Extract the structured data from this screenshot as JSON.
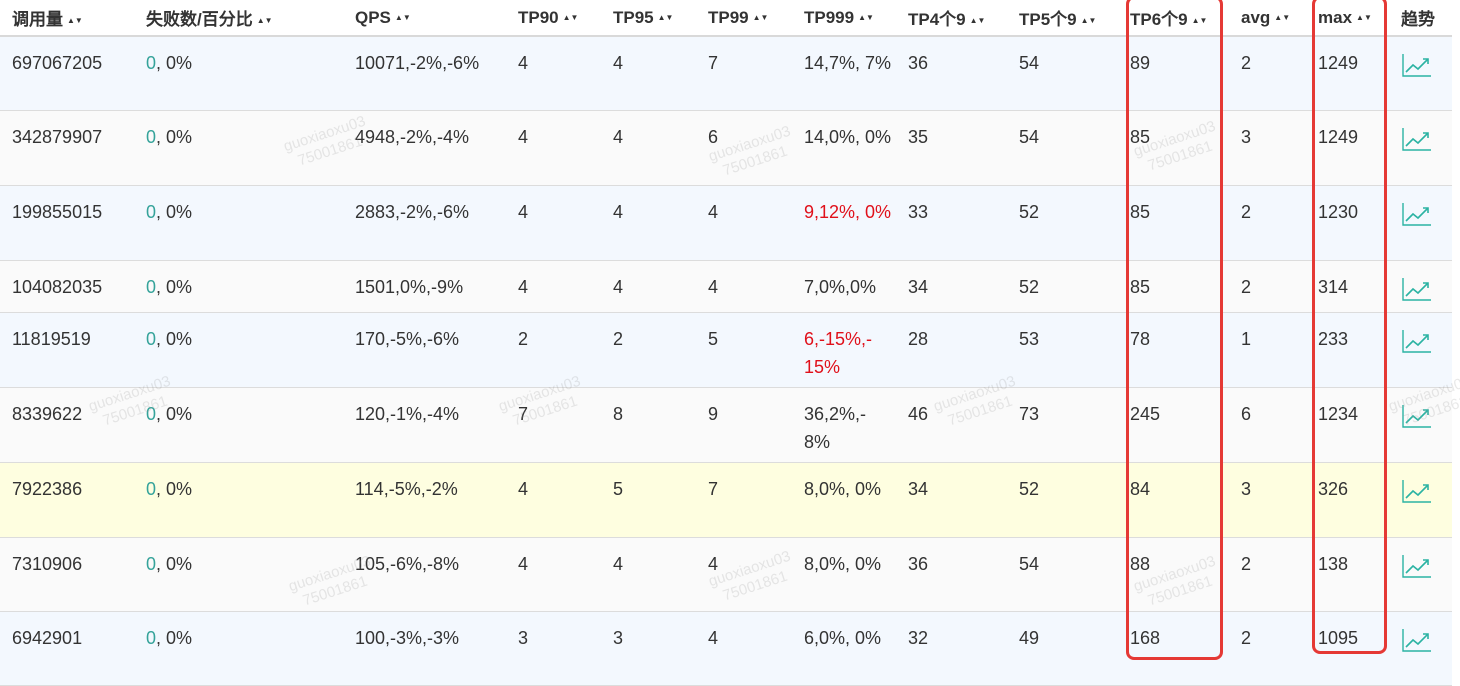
{
  "columns": [
    {
      "key": "calls",
      "label": "调用量"
    },
    {
      "key": "fail",
      "label": "失败数/百分比"
    },
    {
      "key": "qps",
      "label": "QPS"
    },
    {
      "key": "tp90",
      "label": "TP90"
    },
    {
      "key": "tp95",
      "label": "TP95"
    },
    {
      "key": "tp99",
      "label": "TP99"
    },
    {
      "key": "tp999",
      "label": "TP999"
    },
    {
      "key": "tp4",
      "label": "TP4个9"
    },
    {
      "key": "tp5",
      "label": "TP5个9"
    },
    {
      "key": "tp6",
      "label": "TP6个9"
    },
    {
      "key": "avg",
      "label": "avg"
    },
    {
      "key": "max",
      "label": "max"
    },
    {
      "key": "trend",
      "label": "趋势"
    }
  ],
  "rows": [
    {
      "calls": "697067205",
      "fail_count": "0",
      "fail_pct": ", 0%",
      "qps": "10071,-2%,-6%",
      "tp90": "4",
      "tp95": "4",
      "tp99": "7",
      "tp999": "14,7%, 7%",
      "tp999_alert": false,
      "tp4": "36",
      "tp5": "54",
      "tp6": "89",
      "avg": "2",
      "max": "1249"
    },
    {
      "calls": "342879907",
      "fail_count": "0",
      "fail_pct": ", 0%",
      "qps": "4948,-2%,-4%",
      "tp90": "4",
      "tp95": "4",
      "tp99": "6",
      "tp999": "14,0%, 0%",
      "tp999_alert": false,
      "tp4": "35",
      "tp5": "54",
      "tp6": "85",
      "avg": "3",
      "max": "1249"
    },
    {
      "calls": "199855015",
      "fail_count": "0",
      "fail_pct": ", 0%",
      "qps": "2883,-2%,-6%",
      "tp90": "4",
      "tp95": "4",
      "tp99": "4",
      "tp999": "9,12%, 0%",
      "tp999_alert": true,
      "tp4": "33",
      "tp5": "52",
      "tp6": "85",
      "avg": "2",
      "max": "1230"
    },
    {
      "calls": "104082035",
      "fail_count": "0",
      "fail_pct": ", 0%",
      "qps": "1501,0%,-9%",
      "tp90": "4",
      "tp95": "4",
      "tp99": "4",
      "tp999": "7,0%,0%",
      "tp999_alert": false,
      "tp4": "34",
      "tp5": "52",
      "tp6": "85",
      "avg": "2",
      "max": "314"
    },
    {
      "calls": "11819519",
      "fail_count": "0",
      "fail_pct": ", 0%",
      "qps": "170,-5%,-6%",
      "tp90": "2",
      "tp95": "2",
      "tp99": "5",
      "tp999": "6,-15%,- 15%",
      "tp999_alert": true,
      "tp4": "28",
      "tp5": "53",
      "tp6": "78",
      "avg": "1",
      "max": "233"
    },
    {
      "calls": "8339622",
      "fail_count": "0",
      "fail_pct": ", 0%",
      "qps": "120,-1%,-4%",
      "tp90": "7",
      "tp95": "8",
      "tp99": "9",
      "tp999": "36,2%,- 8%",
      "tp999_alert": false,
      "tp4": "46",
      "tp5": "73",
      "tp6": "245",
      "avg": "6",
      "max": "1234"
    },
    {
      "calls": "7922386",
      "fail_count": "0",
      "fail_pct": ", 0%",
      "qps": "114,-5%,-2%",
      "tp90": "4",
      "tp95": "5",
      "tp99": "7",
      "tp999": "8,0%, 0%",
      "tp999_alert": false,
      "tp4": "34",
      "tp5": "52",
      "tp6": "84",
      "avg": "3",
      "max": "326",
      "highlight": true
    },
    {
      "calls": "7310906",
      "fail_count": "0",
      "fail_pct": ", 0%",
      "qps": "105,-6%,-8%",
      "tp90": "4",
      "tp95": "4",
      "tp99": "4",
      "tp999": "8,0%, 0%",
      "tp999_alert": false,
      "tp4": "36",
      "tp5": "54",
      "tp6": "88",
      "avg": "2",
      "max": "138"
    },
    {
      "calls": "6942901",
      "fail_count": "0",
      "fail_pct": ", 0%",
      "qps": "100,-3%,-3%",
      "tp90": "3",
      "tp95": "3",
      "tp99": "4",
      "tp999": "6,0%, 0%",
      "tp999_alert": false,
      "tp4": "32",
      "tp5": "49",
      "tp6": "168",
      "avg": "2",
      "max": "1095"
    }
  ],
  "watermark": {
    "user": "guoxiaoxu03",
    "id": "75001861"
  },
  "colors": {
    "fail_count": "#35a39a",
    "alert_text": "#e0101a",
    "highlight_box": "#e53935",
    "trend_icon": "#2bb3a3"
  },
  "icons": {
    "sort": "sort-icon",
    "trend": "trend-chart-icon"
  }
}
